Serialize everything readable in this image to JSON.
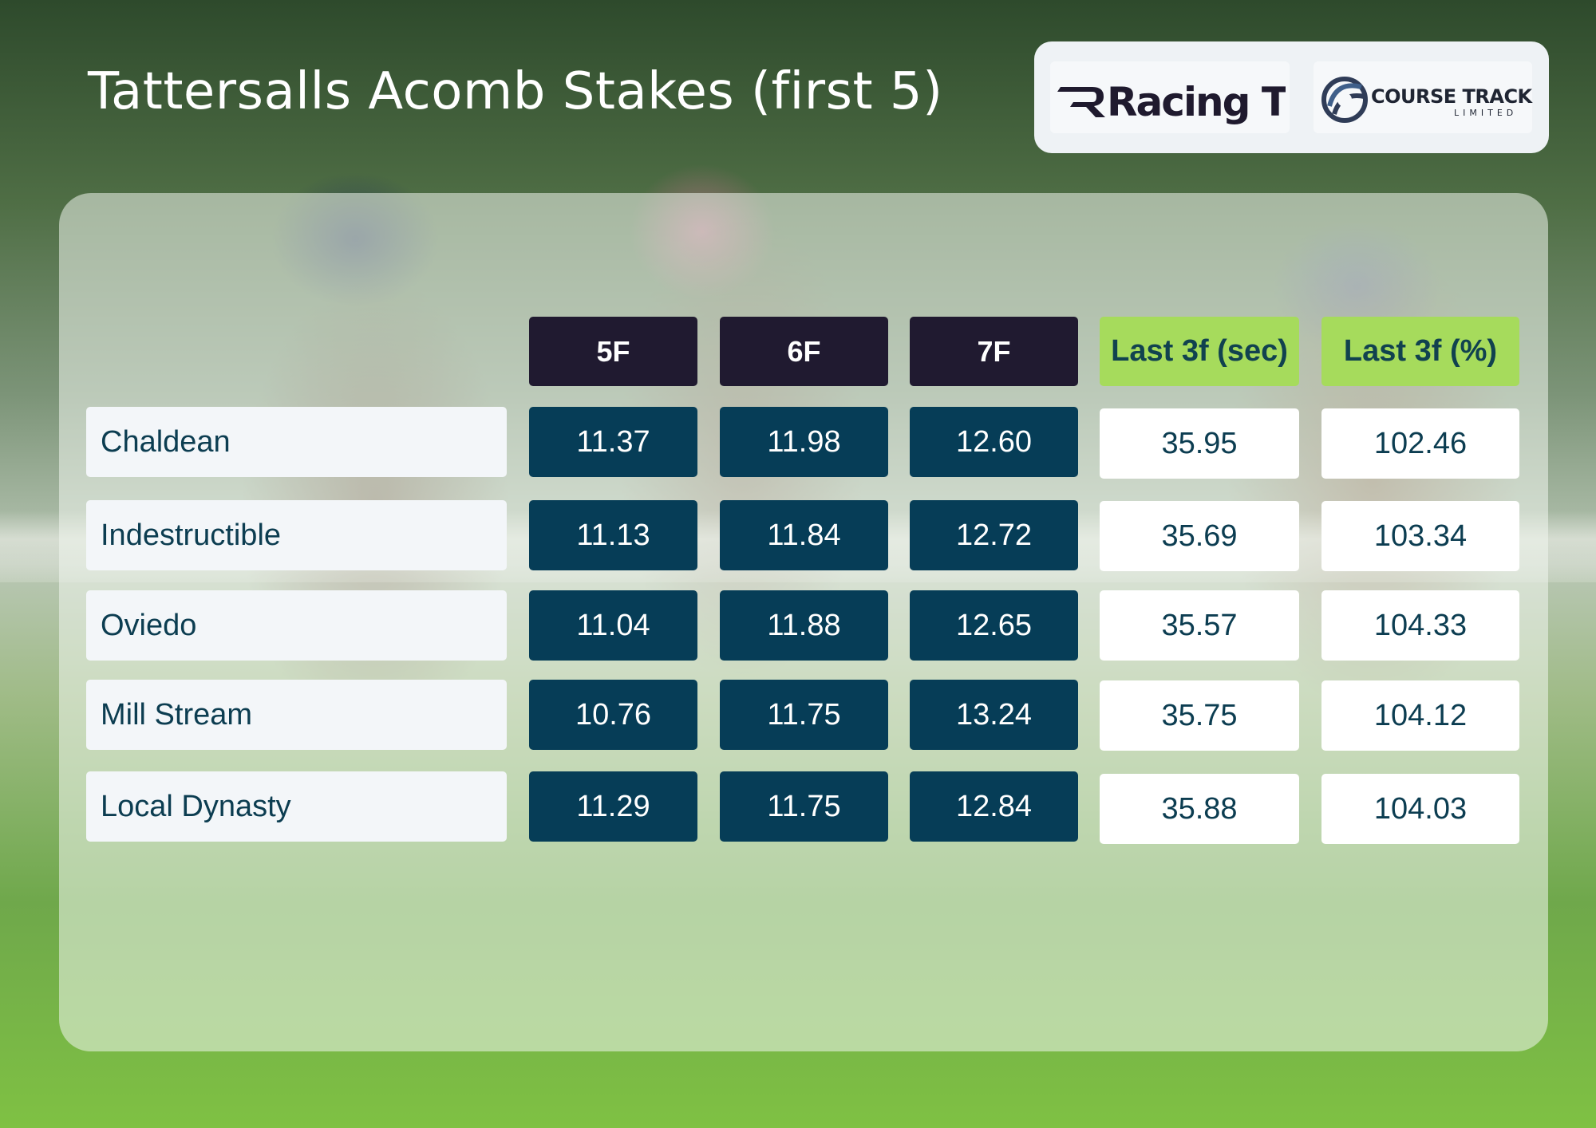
{
  "title": "Tattersalls Acomb Stakes (first 5)",
  "logos": {
    "racing_tv": "Racing TV",
    "course_track": "COURSE TRACK",
    "course_track_sub": "LIMITED"
  },
  "table": {
    "headers": [
      "5F",
      "6F",
      "7F",
      "Last 3f (sec)",
      "Last 3f (%)"
    ],
    "rows": [
      {
        "name": "Chaldean",
        "f5": "11.37",
        "f6": "11.98",
        "f7": "12.60",
        "last3_sec": "35.95",
        "last3_pct": "102.46"
      },
      {
        "name": "Indestructible",
        "f5": "11.13",
        "f6": "11.84",
        "f7": "12.72",
        "last3_sec": "35.69",
        "last3_pct": "103.34"
      },
      {
        "name": "Oviedo",
        "f5": "11.04",
        "f6": "11.88",
        "f7": "12.65",
        "last3_sec": "35.57",
        "last3_pct": "104.33"
      },
      {
        "name": "Mill Stream",
        "f5": "10.76",
        "f6": "11.75",
        "f7": "13.24",
        "last3_sec": "35.75",
        "last3_pct": "104.12"
      },
      {
        "name": "Local Dynasty",
        "f5": "11.29",
        "f6": "11.75",
        "f7": "12.84",
        "last3_sec": "35.88",
        "last3_pct": "104.03"
      }
    ]
  },
  "colors": {
    "header_dark": "#201a30",
    "header_green": "#a6db5c",
    "time_cell": "#063d57",
    "text_dark": "#0c3d51"
  }
}
